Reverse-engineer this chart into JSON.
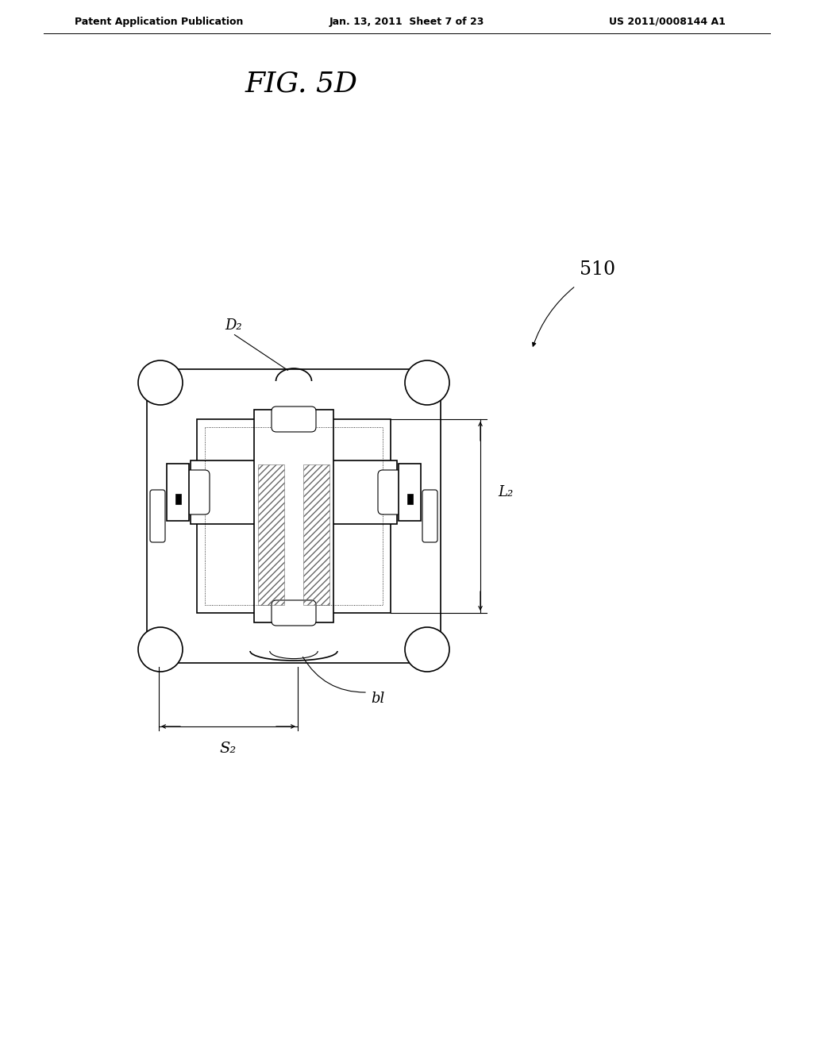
{
  "bg_color": "#ffffff",
  "header_left": "Patent Application Publication",
  "header_mid": "Jan. 13, 2011  Sheet 7 of 23",
  "header_right": "US 2011/0008144 A1",
  "fig_title": "FIG. 5D",
  "label_510": "510",
  "label_D2": "D₂",
  "label_L2": "L₂",
  "label_S2": "S₂",
  "label_bl": "bl",
  "line_color": "#000000"
}
